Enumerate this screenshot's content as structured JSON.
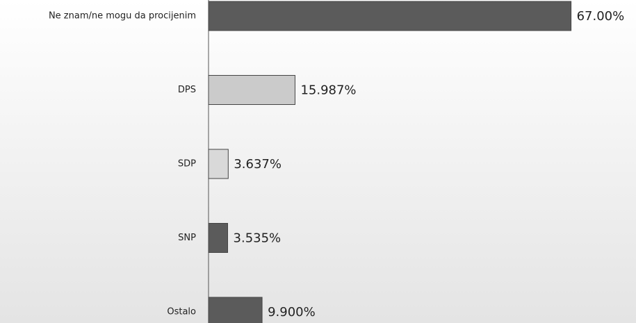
{
  "chart_data": {
    "type": "hbar",
    "categories": [
      "Ne znam/ne mogu da procijenim",
      "DPS",
      "SDP",
      "SNP",
      "Ostalo"
    ],
    "values": [
      67,
      15.987,
      3.637,
      3.535,
      9.9
    ],
    "value_labels": [
      "67.00%",
      "15.987%",
      "3.637%",
      "3.535%",
      "9.900%"
    ],
    "colors": [
      "#5b5b5b",
      "#cbcbcb",
      "#d9d9d9",
      "#5b5b5b",
      "#5b5b5b"
    ],
    "xlim": [
      0,
      79
    ]
  }
}
